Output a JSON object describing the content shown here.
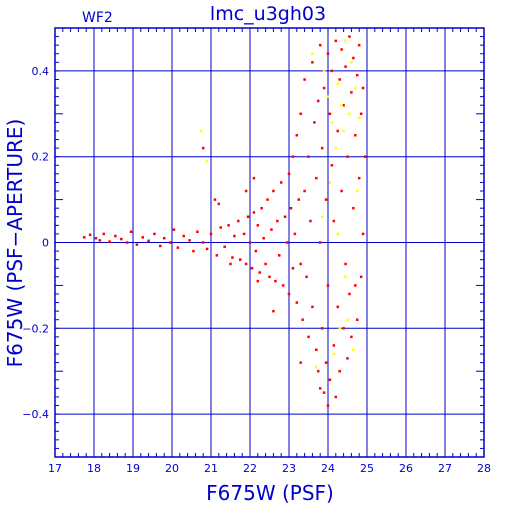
{
  "chart_data": {
    "type": "scatter",
    "title": "lmc_u3gh03",
    "subtitle": "WF2",
    "xlabel": "F675W (PSF)",
    "ylabel": "F675W (PSF−APERTURE)",
    "xlim": [
      17,
      28
    ],
    "ylim": [
      -0.5,
      0.5
    ],
    "xticks": [
      "17",
      "18",
      "19",
      "20",
      "21",
      "22",
      "23",
      "24",
      "25",
      "26",
      "27",
      "28"
    ],
    "yticks": [
      "0.4",
      "0.2",
      "0",
      "−0.2",
      "−0.4"
    ],
    "ytick_values": [
      0.4,
      0.2,
      0,
      -0.2,
      -0.4
    ],
    "grid": true,
    "colors": {
      "axis": "#0000cc",
      "grid": "#0000cc",
      "primary": "#ff0000",
      "secondary": "#ffff00"
    },
    "series": [
      {
        "color": "#ff0000",
        "points": [
          [
            17.75,
            0.012
          ],
          [
            17.9,
            0.018
          ],
          [
            18.05,
            0.01
          ],
          [
            18.15,
            0.005
          ],
          [
            18.25,
            0.02
          ],
          [
            18.4,
            0.002
          ],
          [
            18.55,
            0.015
          ],
          [
            18.7,
            0.008
          ],
          [
            18.85,
            0.0
          ],
          [
            18.95,
            0.025
          ],
          [
            19.1,
            -0.005
          ],
          [
            19.25,
            0.012
          ],
          [
            19.4,
            0.004
          ],
          [
            19.55,
            0.02
          ],
          [
            19.7,
            -0.008
          ],
          [
            19.8,
            0.01
          ],
          [
            19.95,
            0.0
          ],
          [
            20.05,
            0.03
          ],
          [
            20.15,
            -0.012
          ],
          [
            20.3,
            0.015
          ],
          [
            20.45,
            0.005
          ],
          [
            20.55,
            -0.02
          ],
          [
            20.65,
            0.025
          ],
          [
            20.8,
            0.0
          ],
          [
            20.9,
            -0.015
          ],
          [
            21.0,
            0.02
          ],
          [
            21.1,
            0.1
          ],
          [
            21.15,
            -0.03
          ],
          [
            21.25,
            0.035
          ],
          [
            21.35,
            -0.01
          ],
          [
            21.45,
            0.04
          ],
          [
            21.55,
            -0.035
          ],
          [
            21.6,
            0.015
          ],
          [
            21.7,
            0.05
          ],
          [
            21.75,
            -0.04
          ],
          [
            21.85,
            0.02
          ],
          [
            21.9,
            -0.05
          ],
          [
            21.95,
            0.06
          ],
          [
            22.0,
            0.0
          ],
          [
            22.05,
            -0.06
          ],
          [
            22.1,
            0.07
          ],
          [
            22.15,
            -0.02
          ],
          [
            22.2,
            0.04
          ],
          [
            22.25,
            -0.07
          ],
          [
            22.3,
            0.08
          ],
          [
            22.35,
            0.01
          ],
          [
            22.4,
            -0.05
          ],
          [
            22.45,
            0.1
          ],
          [
            22.5,
            -0.08
          ],
          [
            22.55,
            0.03
          ],
          [
            22.6,
            0.12
          ],
          [
            22.65,
            -0.09
          ],
          [
            22.7,
            0.05
          ],
          [
            22.75,
            -0.03
          ],
          [
            22.8,
            0.14
          ],
          [
            22.85,
            -0.1
          ],
          [
            22.9,
            0.06
          ],
          [
            22.95,
            0.0
          ],
          [
            23.0,
            0.16
          ],
          [
            23.0,
            -0.12
          ],
          [
            23.05,
            0.08
          ],
          [
            23.1,
            -0.06
          ],
          [
            23.1,
            0.2
          ],
          [
            23.15,
            0.02
          ],
          [
            23.2,
            -0.14
          ],
          [
            23.2,
            0.25
          ],
          [
            23.25,
            0.1
          ],
          [
            23.3,
            -0.05
          ],
          [
            23.3,
            0.3
          ],
          [
            23.35,
            -0.18
          ],
          [
            23.4,
            0.12
          ],
          [
            23.4,
            0.38
          ],
          [
            23.45,
            -0.08
          ],
          [
            23.5,
            0.2
          ],
          [
            23.5,
            -0.22
          ],
          [
            23.55,
            0.05
          ],
          [
            23.6,
            0.42
          ],
          [
            23.6,
            -0.15
          ],
          [
            23.65,
            0.28
          ],
          [
            23.7,
            -0.25
          ],
          [
            23.7,
            0.15
          ],
          [
            23.75,
            0.33
          ],
          [
            23.75,
            -0.3
          ],
          [
            23.8,
            0.0
          ],
          [
            23.8,
            0.46
          ],
          [
            23.85,
            -0.2
          ],
          [
            23.85,
            0.22
          ],
          [
            23.9,
            -0.35
          ],
          [
            23.9,
            0.36
          ],
          [
            23.95,
            0.1
          ],
          [
            23.95,
            -0.28
          ],
          [
            24.0,
            0.44
          ],
          [
            24.0,
            -0.1
          ],
          [
            24.05,
            0.3
          ],
          [
            24.05,
            -0.32
          ],
          [
            24.1,
            0.18
          ],
          [
            24.1,
            0.4
          ],
          [
            24.15,
            -0.24
          ],
          [
            24.15,
            0.05
          ],
          [
            24.2,
            0.47
          ],
          [
            24.2,
            -0.36
          ],
          [
            24.25,
            0.26
          ],
          [
            24.25,
            -0.15
          ],
          [
            24.3,
            0.38
          ],
          [
            24.3,
            -0.3
          ],
          [
            24.35,
            0.12
          ],
          [
            24.35,
            0.45
          ],
          [
            24.4,
            -0.2
          ],
          [
            24.4,
            0.32
          ],
          [
            24.45,
            -0.05
          ],
          [
            24.45,
            0.41
          ],
          [
            24.5,
            -0.27
          ],
          [
            24.5,
            0.2
          ],
          [
            24.55,
            0.48
          ],
          [
            24.55,
            -0.12
          ],
          [
            24.6,
            0.35
          ],
          [
            24.6,
            -0.22
          ],
          [
            24.65,
            0.08
          ],
          [
            24.65,
            0.43
          ],
          [
            24.7,
            -0.1
          ],
          [
            24.7,
            0.25
          ],
          [
            24.75,
            0.39
          ],
          [
            24.75,
            -0.18
          ],
          [
            24.8,
            0.15
          ],
          [
            24.8,
            0.46
          ],
          [
            24.85,
            -0.08
          ],
          [
            24.85,
            0.3
          ],
          [
            24.9,
            0.02
          ],
          [
            24.9,
            0.36
          ],
          [
            24.95,
            0.2
          ],
          [
            20.8,
            0.22
          ],
          [
            21.2,
            0.09
          ],
          [
            21.9,
            0.12
          ],
          [
            22.1,
            0.15
          ],
          [
            22.6,
            -0.16
          ],
          [
            23.3,
            -0.28
          ],
          [
            23.8,
            -0.34
          ],
          [
            24.0,
            -0.38
          ],
          [
            21.5,
            -0.05
          ],
          [
            22.2,
            -0.09
          ]
        ]
      },
      {
        "color": "#ffff00",
        "points": [
          [
            20.75,
            0.26
          ],
          [
            20.9,
            0.19
          ],
          [
            23.6,
            0.44
          ],
          [
            23.9,
            0.4
          ],
          [
            24.0,
            0.34
          ],
          [
            24.1,
            0.28
          ],
          [
            24.15,
            -0.26
          ],
          [
            24.2,
            0.22
          ],
          [
            24.25,
            0.37
          ],
          [
            24.3,
            -0.2
          ],
          [
            24.35,
            0.32
          ],
          [
            24.4,
            0.26
          ],
          [
            24.45,
            0.47
          ],
          [
            24.5,
            -0.18
          ],
          [
            24.55,
            0.3
          ],
          [
            24.6,
            0.42
          ],
          [
            24.65,
            -0.25
          ],
          [
            24.7,
            0.36
          ],
          [
            24.75,
            0.12
          ],
          [
            24.8,
            0.29
          ],
          [
            23.7,
            -0.29
          ],
          [
            23.85,
            0.06
          ],
          [
            24.05,
            0.14
          ],
          [
            24.25,
            0.02
          ],
          [
            24.45,
            -0.08
          ]
        ]
      }
    ]
  }
}
